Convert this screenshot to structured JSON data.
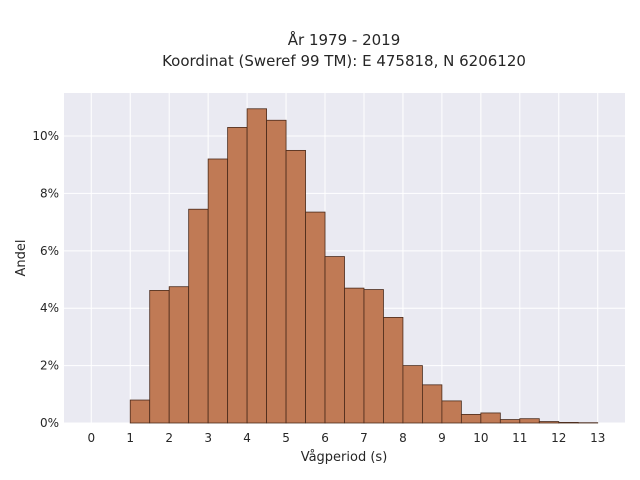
{
  "chart_data": {
    "type": "bar",
    "title_line1": "År 1979 - 2019",
    "title_line2": "Koordinat (Sweref 99 TM): E 475818, N 6206120",
    "xlabel": "Vågperiod (s)",
    "ylabel": "Andel",
    "bin_width": 0.5,
    "bin_starts": [
      0,
      0.5,
      1,
      1.5,
      2,
      2.5,
      3,
      3.5,
      4,
      4.5,
      5,
      5.5,
      6,
      6.5,
      7,
      7.5,
      8,
      8.5,
      9,
      9.5,
      10,
      10.5,
      11,
      11.5,
      12,
      12.5
    ],
    "values": [
      0.0,
      0.0,
      0.8,
      4.62,
      4.75,
      7.45,
      9.2,
      10.3,
      10.95,
      10.55,
      9.5,
      7.35,
      5.8,
      4.7,
      4.65,
      3.68,
      2.0,
      1.33,
      0.77,
      0.3,
      0.35,
      0.12,
      0.15,
      0.05,
      0.02,
      0.01
    ],
    "x_ticks": [
      "0",
      "1",
      "2",
      "3",
      "4",
      "5",
      "6",
      "7",
      "8",
      "9",
      "10",
      "11",
      "12",
      "13"
    ],
    "y_ticks": [
      "0%",
      "2%",
      "4%",
      "6%",
      "8%",
      "10%"
    ],
    "xlim": [
      -0.7,
      13.7
    ],
    "ylim": [
      0,
      11.5
    ],
    "grid": true,
    "colors": {
      "bar_fill": "#c07a55",
      "bar_edge": "#4a2a1a",
      "background": "#eaeaf2",
      "grid": "#ffffff"
    }
  }
}
